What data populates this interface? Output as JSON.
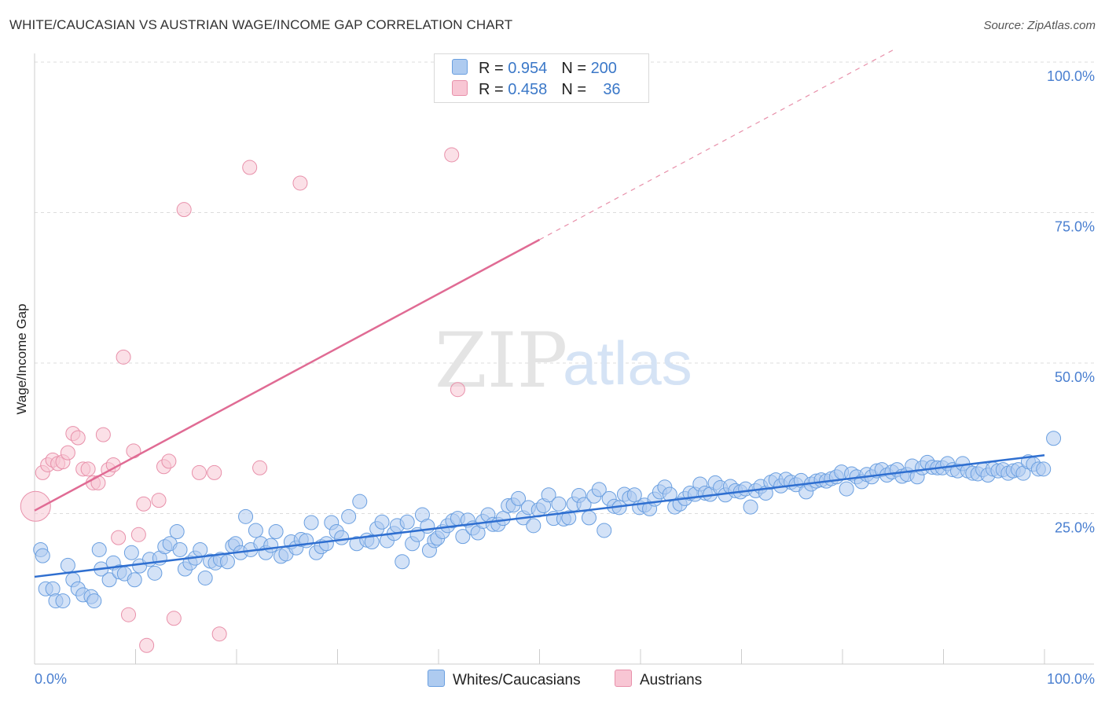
{
  "title": "WHITE/CAUCASIAN VS AUSTRIAN WAGE/INCOME GAP CORRELATION CHART",
  "source": "Source: ZipAtlas.com",
  "watermark": {
    "zip": "ZIP",
    "atlas": "atlas"
  },
  "colors": {
    "blue_fill": "#aecbf0",
    "blue_stroke": "#6a9fe0",
    "blue_line": "#2f6fd0",
    "pink_fill": "#f8c6d4",
    "pink_stroke": "#e890aa",
    "pink_line": "#e06b94",
    "tick_text": "#4a7fd0",
    "grid": "#dddddd"
  },
  "legend": {
    "rows": [
      {
        "r_label": "R = ",
        "r_value": "0.954",
        "n_label": "N = ",
        "n_value": "200",
        "color": "#aecbf0"
      },
      {
        "r_label": "R = ",
        "r_value": "0.458",
        "n_label": "N = ",
        "n_value": "36",
        "color": "#f8c6d4"
      }
    ]
  },
  "bottom_legend": [
    {
      "label": "Whites/Caucasians",
      "color": "#aecbf0"
    },
    {
      "label": "Austrians",
      "color": "#f8c6d4"
    }
  ],
  "chart_data": {
    "type": "scatter",
    "title": "WHITE/CAUCASIAN VS AUSTRIAN WAGE/INCOME GAP CORRELATION CHART",
    "xlabel": "",
    "ylabel": "Wage/Income Gap",
    "xlim": [
      0,
      100
    ],
    "ylim": [
      0,
      100
    ],
    "x_tick_labels": [
      {
        "value": 0,
        "label": "0.0%"
      },
      {
        "value": 100,
        "label": "100.0%"
      }
    ],
    "y_tick_labels": [
      {
        "value": 25,
        "label": "25.0%"
      },
      {
        "value": 50,
        "label": "50.0%"
      },
      {
        "value": 75,
        "label": "75.0%"
      },
      {
        "value": 100,
        "label": "100.0%"
      }
    ],
    "grid": {
      "horizontal": true,
      "vertical": false,
      "style": "dashed"
    },
    "legend_position": "top-center",
    "series": [
      {
        "name": "Whites/Caucasians",
        "r": 0.954,
        "n": 200,
        "trend": {
          "x0": 0,
          "y0": 14.5,
          "x1": 100,
          "y1": 34.7
        },
        "points": [
          [
            0.6,
            19
          ],
          [
            0.8,
            18
          ],
          [
            1.1,
            12.5
          ],
          [
            1.8,
            12.5
          ],
          [
            2.1,
            10.5
          ],
          [
            2.8,
            10.5
          ],
          [
            3.3,
            16.4
          ],
          [
            3.8,
            14
          ],
          [
            4.3,
            12.5
          ],
          [
            4.8,
            11.5
          ],
          [
            5.6,
            11.2
          ],
          [
            5.9,
            10.5
          ],
          [
            6.4,
            19
          ],
          [
            6.6,
            15.8
          ],
          [
            7.4,
            14
          ],
          [
            7.8,
            16.8
          ],
          [
            8.4,
            15.3
          ],
          [
            8.9,
            15
          ],
          [
            9.6,
            18.5
          ],
          [
            9.9,
            14
          ],
          [
            10.4,
            16.3
          ],
          [
            11.4,
            17.4
          ],
          [
            11.9,
            15.1
          ],
          [
            12.4,
            17.6
          ],
          [
            12.9,
            19.5
          ],
          [
            13.4,
            20
          ],
          [
            14.1,
            22
          ],
          [
            14.4,
            19
          ],
          [
            14.9,
            15.8
          ],
          [
            15.4,
            16.8
          ],
          [
            15.9,
            17.6
          ],
          [
            16.4,
            19
          ],
          [
            16.9,
            14.3
          ],
          [
            17.4,
            17.1
          ],
          [
            17.9,
            16.8
          ],
          [
            18.4,
            17.4
          ],
          [
            19.1,
            17
          ],
          [
            19.6,
            19.6
          ],
          [
            19.9,
            20
          ],
          [
            20.4,
            18.5
          ],
          [
            20.9,
            24.5
          ],
          [
            21.4,
            19
          ],
          [
            21.9,
            22.2
          ],
          [
            22.4,
            20
          ],
          [
            22.9,
            18.5
          ],
          [
            23.4,
            19.7
          ],
          [
            23.9,
            22
          ],
          [
            24.4,
            17.9
          ],
          [
            24.9,
            18.3
          ],
          [
            25.4,
            20.3
          ],
          [
            25.9,
            19.3
          ],
          [
            26.4,
            20.7
          ],
          [
            26.9,
            20.5
          ],
          [
            27.4,
            23.5
          ],
          [
            27.9,
            18.5
          ],
          [
            28.4,
            19.5
          ],
          [
            28.9,
            20
          ],
          [
            29.4,
            23.5
          ],
          [
            29.9,
            22
          ],
          [
            30.4,
            21
          ],
          [
            31.1,
            24.5
          ],
          [
            31.9,
            20
          ],
          [
            32.2,
            27
          ],
          [
            32.9,
            20.6
          ],
          [
            33.4,
            20.3
          ],
          [
            33.9,
            22.5
          ],
          [
            34.4,
            23.6
          ],
          [
            34.9,
            20.5
          ],
          [
            35.6,
            21.7
          ],
          [
            35.9,
            23
          ],
          [
            36.4,
            17
          ],
          [
            36.9,
            23.6
          ],
          [
            37.4,
            20
          ],
          [
            37.9,
            21.5
          ],
          [
            38.4,
            24.8
          ],
          [
            38.9,
            22.9
          ],
          [
            39.1,
            18.9
          ],
          [
            39.6,
            20.5
          ],
          [
            39.9,
            20.9
          ],
          [
            40.4,
            22
          ],
          [
            40.9,
            23
          ],
          [
            41.4,
            23.8
          ],
          [
            41.9,
            24.2
          ],
          [
            42.4,
            21.2
          ],
          [
            42.9,
            23.9
          ],
          [
            43.4,
            22.6
          ],
          [
            43.9,
            21.8
          ],
          [
            44.4,
            23.7
          ],
          [
            44.9,
            24.8
          ],
          [
            45.4,
            23.2
          ],
          [
            45.9,
            23.2
          ],
          [
            46.4,
            24.2
          ],
          [
            46.9,
            26.3
          ],
          [
            47.4,
            26.4
          ],
          [
            47.9,
            27.5
          ],
          [
            48.4,
            24.3
          ],
          [
            48.9,
            26
          ],
          [
            49.4,
            23
          ],
          [
            49.9,
            25.6
          ],
          [
            50.4,
            26.3
          ],
          [
            50.9,
            28.1
          ],
          [
            51.4,
            24.2
          ],
          [
            51.9,
            26.6
          ],
          [
            52.4,
            24.1
          ],
          [
            52.9,
            24.3
          ],
          [
            53.4,
            26.6
          ],
          [
            53.9,
            28
          ],
          [
            54.4,
            26.5
          ],
          [
            54.9,
            24.3
          ],
          [
            55.4,
            27.9
          ],
          [
            55.9,
            29
          ],
          [
            56.4,
            22.2
          ],
          [
            56.9,
            27.5
          ],
          [
            57.4,
            26.2
          ],
          [
            57.9,
            26
          ],
          [
            58.4,
            28.2
          ],
          [
            58.9,
            27.6
          ],
          [
            59.4,
            28.1
          ],
          [
            59.9,
            26
          ],
          [
            60.4,
            26.4
          ],
          [
            60.9,
            25.8
          ],
          [
            61.4,
            27.4
          ],
          [
            61.9,
            28.6
          ],
          [
            62.4,
            29.4
          ],
          [
            62.9,
            28.2
          ],
          [
            63.4,
            26.1
          ],
          [
            63.9,
            26.6
          ],
          [
            64.4,
            27.5
          ],
          [
            64.9,
            28.4
          ],
          [
            65.4,
            28.2
          ],
          [
            65.9,
            29.9
          ],
          [
            66.4,
            28.4
          ],
          [
            66.9,
            28.2
          ],
          [
            67.4,
            30.1
          ],
          [
            67.9,
            29.3
          ],
          [
            68.4,
            28.1
          ],
          [
            68.9,
            29.5
          ],
          [
            69.4,
            28.8
          ],
          [
            69.9,
            28.6
          ],
          [
            70.4,
            29.1
          ],
          [
            70.9,
            26.1
          ],
          [
            71.4,
            28.8
          ],
          [
            71.9,
            29.5
          ],
          [
            72.4,
            28.4
          ],
          [
            72.9,
            30.2
          ],
          [
            73.4,
            30.6
          ],
          [
            73.9,
            29.6
          ],
          [
            74.4,
            30.7
          ],
          [
            74.9,
            30.2
          ],
          [
            75.4,
            29.8
          ],
          [
            75.9,
            30.5
          ],
          [
            76.4,
            28.6
          ],
          [
            76.9,
            29.9
          ],
          [
            77.4,
            30.4
          ],
          [
            77.9,
            30.6
          ],
          [
            78.4,
            30.4
          ],
          [
            78.9,
            30.8
          ],
          [
            79.4,
            31.1
          ],
          [
            79.9,
            31.9
          ],
          [
            80.4,
            29.1
          ],
          [
            80.9,
            31.6
          ],
          [
            81.4,
            31.1
          ],
          [
            81.9,
            30.3
          ],
          [
            82.4,
            31.5
          ],
          [
            82.9,
            31.1
          ],
          [
            83.4,
            32.1
          ],
          [
            83.9,
            32.3
          ],
          [
            84.4,
            31.4
          ],
          [
            84.9,
            31.9
          ],
          [
            85.4,
            32.3
          ],
          [
            85.9,
            31.2
          ],
          [
            86.4,
            31.5
          ],
          [
            86.9,
            32.9
          ],
          [
            87.4,
            31.1
          ],
          [
            87.9,
            32.6
          ],
          [
            88.4,
            33.5
          ],
          [
            88.9,
            32.7
          ],
          [
            89.4,
            32.6
          ],
          [
            89.9,
            32.6
          ],
          [
            90.4,
            33.3
          ],
          [
            90.9,
            32.3
          ],
          [
            91.4,
            32.1
          ],
          [
            91.9,
            33.3
          ],
          [
            92.4,
            32.1
          ],
          [
            92.9,
            31.7
          ],
          [
            93.4,
            31.6
          ],
          [
            93.9,
            32.3
          ],
          [
            94.4,
            31.4
          ],
          [
            94.9,
            32.4
          ],
          [
            95.4,
            32.1
          ],
          [
            95.9,
            32.3
          ],
          [
            96.4,
            31.7
          ],
          [
            96.9,
            32.1
          ],
          [
            97.4,
            32.3
          ],
          [
            97.9,
            31.7
          ],
          [
            98.4,
            33.6
          ],
          [
            98.9,
            33.2
          ],
          [
            99.4,
            32.4
          ],
          [
            99.9,
            32.4
          ],
          [
            100.9,
            37.5
          ]
        ]
      },
      {
        "name": "Austrians",
        "r": 0.458,
        "n": 36,
        "trend": {
          "x0": 0,
          "y0": 25.5,
          "x1": 50,
          "y1": 70.5,
          "dashed_to": {
            "x": 100,
            "y": 115.5
          }
        },
        "points": [
          [
            0.1,
            26.2
          ],
          [
            0.8,
            31.8
          ],
          [
            1.3,
            33.1
          ],
          [
            1.8,
            33.9
          ],
          [
            2.3,
            33.3
          ],
          [
            2.8,
            33.6
          ],
          [
            3.3,
            35.1
          ],
          [
            3.8,
            38.3
          ],
          [
            4.3,
            37.6
          ],
          [
            4.8,
            32.4
          ],
          [
            5.3,
            32.4
          ],
          [
            5.8,
            30.1
          ],
          [
            6.3,
            30.1
          ],
          [
            6.8,
            38.1
          ],
          [
            7.3,
            32.3
          ],
          [
            7.8,
            33.1
          ],
          [
            8.3,
            21
          ],
          [
            8.8,
            51
          ],
          [
            9.3,
            8.2
          ],
          [
            9.8,
            35.4
          ],
          [
            10.3,
            21.5
          ],
          [
            10.8,
            26.6
          ],
          [
            11.1,
            3.1
          ],
          [
            12.3,
            27.2
          ],
          [
            12.8,
            32.8
          ],
          [
            13.3,
            33.7
          ],
          [
            13.8,
            7.6
          ],
          [
            14.8,
            75.5
          ],
          [
            16.3,
            31.8
          ],
          [
            17.8,
            31.8
          ],
          [
            18.3,
            5
          ],
          [
            21.3,
            82.5
          ],
          [
            22.3,
            32.6
          ],
          [
            26.3,
            79.9
          ],
          [
            41.3,
            84.6
          ],
          [
            41.9,
            45.6
          ]
        ]
      }
    ]
  }
}
